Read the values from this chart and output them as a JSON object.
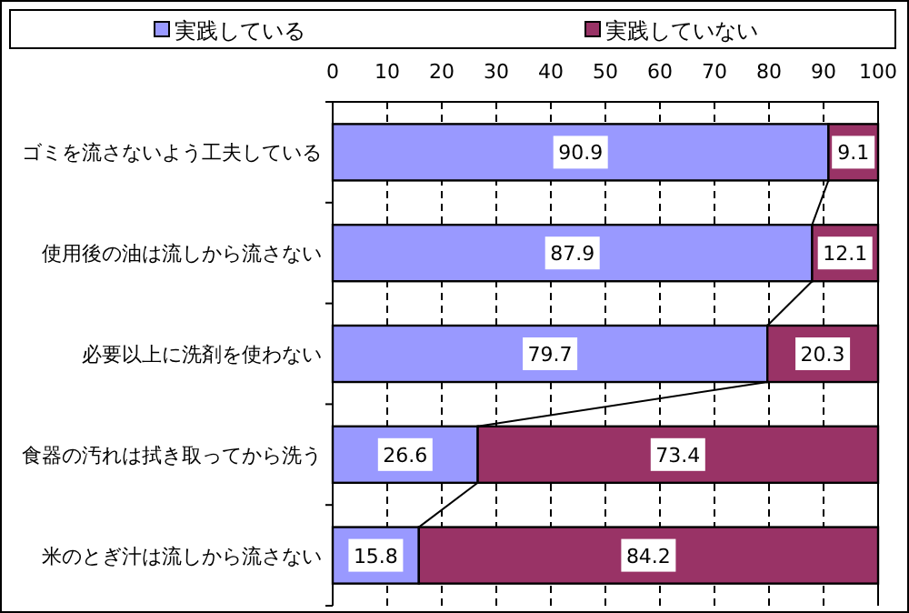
{
  "chart_data": {
    "type": "bar",
    "orientation": "horizontal",
    "stacked": true,
    "categories": [
      "ゴミを流さないよう工夫している",
      "使用後の油は流しから流さない",
      "必要以上に洗剤を使わない",
      "食器の汚れは拭き取ってから洗う",
      "米のとぎ汁は流しから流さない"
    ],
    "series": [
      {
        "name": "実践している",
        "color": "#9999ff",
        "values": [
          90.9,
          87.9,
          79.7,
          26.6,
          15.8
        ]
      },
      {
        "name": "実践していない",
        "color": "#993366",
        "values": [
          9.1,
          12.1,
          20.3,
          73.4,
          84.2
        ]
      }
    ],
    "xlim": [
      0,
      100
    ],
    "xticks": [
      0,
      10,
      20,
      30,
      40,
      50,
      60,
      70,
      80,
      90,
      100
    ],
    "grid": "x",
    "legend": "top",
    "data_labels": true
  }
}
